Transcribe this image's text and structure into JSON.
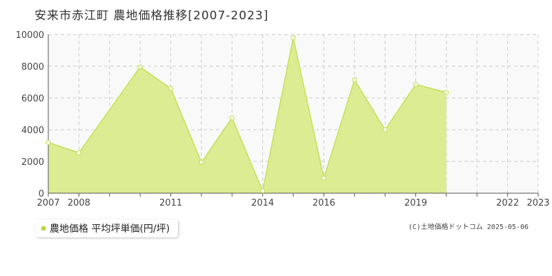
{
  "title": "安来市赤江町  農地価格推移[2007-2023]",
  "legend": {
    "label": "農地価格 平均坪単価(円/坪)"
  },
  "copyright": "(C)土地価格ドットコム 2025-05-06",
  "colors": {
    "fill": "#dbec92",
    "line": "#c5e05a",
    "marker_fill": "#ffffff",
    "grid": "#cccccc",
    "plot_bg": "#f9f9f9",
    "legend_swatch": "#b5d637"
  },
  "chart_data": {
    "type": "area",
    "title": "安来市赤江町  農地価格推移[2007-2023]",
    "series": [
      {
        "name": "農地価格 平均坪単価(円/坪)",
        "x": [
          2007,
          2008,
          2009,
          2010,
          2011,
          2012,
          2013,
          2014,
          2015,
          2016,
          2017,
          2018,
          2019,
          2020,
          2021,
          2022,
          2023
        ],
        "y": [
          3200,
          2550,
          null,
          7950,
          6600,
          1950,
          4750,
          150,
          9800,
          950,
          7150,
          4000,
          6850,
          6350,
          null,
          null,
          null
        ]
      }
    ],
    "xlim": [
      2007,
      2023
    ],
    "ylim": [
      0,
      10000
    ],
    "x_ticks": [
      2007,
      2008,
      2011,
      2014,
      2016,
      2019,
      2022,
      2023
    ],
    "y_ticks": [
      0,
      2000,
      4000,
      6000,
      8000,
      10000
    ],
    "grid": true,
    "legend_position": "bottom-left"
  }
}
